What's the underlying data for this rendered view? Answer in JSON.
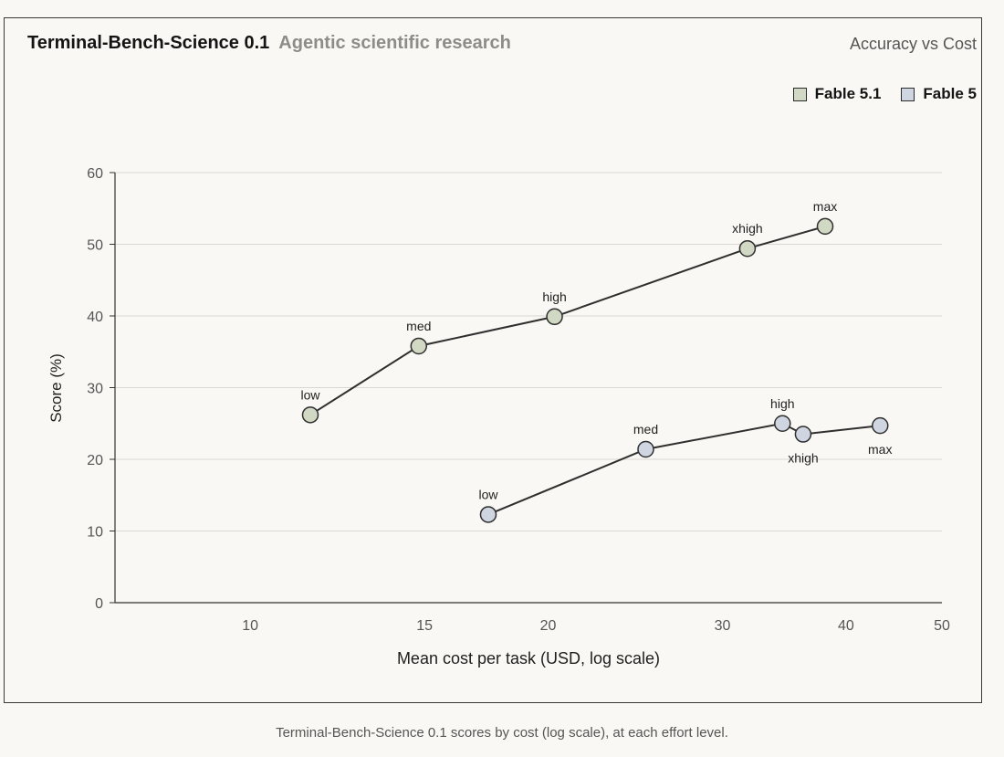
{
  "header": {
    "title": "Terminal-Bench-Science 0.1",
    "subtitle": "Agentic scientific research",
    "right_label": "Accuracy vs Cost"
  },
  "caption": "Terminal-Bench-Science 0.1 scores by cost (log scale), at each effort level.",
  "colors": {
    "fable51": "#d1d9c4",
    "fable5": "#cfd6e2",
    "line": "#2f2f2f",
    "grid": "#d9d8d3",
    "axis": "#333333"
  },
  "chart_data": {
    "type": "line",
    "xlabel": "Mean cost per task (USD, log scale)",
    "ylabel": "Score (%)",
    "x_scale": "log",
    "xlim": [
      7.3,
      50
    ],
    "ylim": [
      0,
      60
    ],
    "x_ticks": [
      10,
      15,
      20,
      30,
      40,
      50
    ],
    "y_ticks": [
      0,
      10,
      20,
      30,
      40,
      50,
      60
    ],
    "grid": "horizontal",
    "legend_position": "top-right",
    "series": [
      {
        "name": "Fable 5.1",
        "color": "#d1d9c4",
        "points": [
          {
            "label": "low",
            "x": 11.5,
            "y": 26.2,
            "label_pos": "above"
          },
          {
            "label": "med",
            "x": 14.8,
            "y": 35.8,
            "label_pos": "above"
          },
          {
            "label": "high",
            "x": 20.3,
            "y": 39.9,
            "label_pos": "above"
          },
          {
            "label": "xhigh",
            "x": 31.8,
            "y": 49.4,
            "label_pos": "above"
          },
          {
            "label": "max",
            "x": 38.1,
            "y": 52.5,
            "label_pos": "above"
          }
        ]
      },
      {
        "name": "Fable 5",
        "color": "#cfd6e2",
        "points": [
          {
            "label": "low",
            "x": 17.4,
            "y": 12.3,
            "label_pos": "above"
          },
          {
            "label": "med",
            "x": 25.1,
            "y": 21.4,
            "label_pos": "above"
          },
          {
            "label": "high",
            "x": 34.5,
            "y": 25.0,
            "label_pos": "above"
          },
          {
            "label": "xhigh",
            "x": 36.2,
            "y": 23.5,
            "label_pos": "below"
          },
          {
            "label": "max",
            "x": 43.3,
            "y": 24.7,
            "label_pos": "below"
          }
        ]
      }
    ]
  }
}
